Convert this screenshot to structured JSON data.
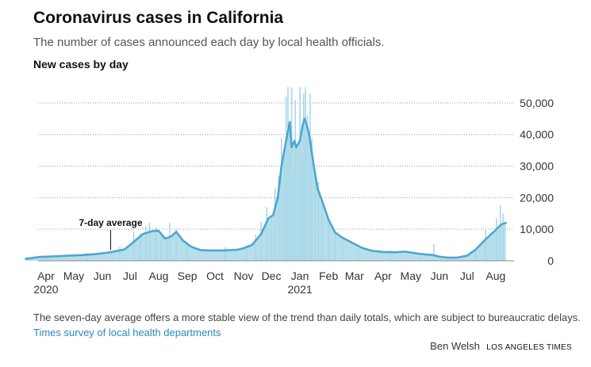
{
  "header": {
    "title": "Coronavirus cases in California",
    "subtitle": "The number of cases announced each day by local health officials.",
    "section_label": "New cases by day"
  },
  "chart_data": {
    "type": "bar",
    "ylim": [
      0,
      55000
    ],
    "grid": true,
    "y_ticks": [
      {
        "value": 0,
        "label": "0"
      },
      {
        "value": 10000,
        "label": "10,000"
      },
      {
        "value": 20000,
        "label": "20,000"
      },
      {
        "value": 30000,
        "label": "30,000"
      },
      {
        "value": 40000,
        "label": "40,000"
      },
      {
        "value": 50000,
        "label": "50,000"
      }
    ],
    "x_ticks": [
      {
        "date": "2020-04-01",
        "label": "Apr",
        "sublabel": "2020"
      },
      {
        "date": "2020-05-01",
        "label": "May"
      },
      {
        "date": "2020-06-01",
        "label": "Jun"
      },
      {
        "date": "2020-07-01",
        "label": "Jul"
      },
      {
        "date": "2020-08-01",
        "label": "Aug"
      },
      {
        "date": "2020-09-01",
        "label": "Sep"
      },
      {
        "date": "2020-10-01",
        "label": "Oct"
      },
      {
        "date": "2020-11-01",
        "label": "Nov"
      },
      {
        "date": "2020-12-01",
        "label": "Dec"
      },
      {
        "date": "2021-01-01",
        "label": "Jan",
        "sublabel": "2021"
      },
      {
        "date": "2021-02-01",
        "label": "Feb"
      },
      {
        "date": "2021-03-01",
        "label": "Mar"
      },
      {
        "date": "2021-04-01",
        "label": "Apr"
      },
      {
        "date": "2021-05-01",
        "label": "May"
      },
      {
        "date": "2021-06-01",
        "label": "Jun"
      },
      {
        "date": "2021-07-01",
        "label": "Jul"
      },
      {
        "date": "2021-08-01",
        "label": "Aug"
      }
    ],
    "x_range": [
      "2020-03-10",
      "2021-08-12"
    ],
    "series": [
      {
        "name": "7-day average",
        "type": "line",
        "color": "#4ea6d1",
        "points": [
          [
            "2020-03-10",
            600
          ],
          [
            "2020-03-25",
            1200
          ],
          [
            "2020-04-10",
            1400
          ],
          [
            "2020-04-25",
            1600
          ],
          [
            "2020-05-10",
            1800
          ],
          [
            "2020-05-25",
            2100
          ],
          [
            "2020-06-10",
            2700
          ],
          [
            "2020-06-25",
            3600
          ],
          [
            "2020-07-05",
            6000
          ],
          [
            "2020-07-15",
            8500
          ],
          [
            "2020-07-25",
            9400
          ],
          [
            "2020-08-01",
            9500
          ],
          [
            "2020-08-08",
            7000
          ],
          [
            "2020-08-15",
            7800
          ],
          [
            "2020-08-20",
            9200
          ],
          [
            "2020-08-27",
            6500
          ],
          [
            "2020-09-05",
            4500
          ],
          [
            "2020-09-15",
            3400
          ],
          [
            "2020-09-25",
            3300
          ],
          [
            "2020-10-10",
            3300
          ],
          [
            "2020-10-25",
            3500
          ],
          [
            "2020-11-01",
            4000
          ],
          [
            "2020-11-10",
            5000
          ],
          [
            "2020-11-20",
            8500
          ],
          [
            "2020-11-28",
            13500
          ],
          [
            "2020-12-03",
            14500
          ],
          [
            "2020-12-08",
            20000
          ],
          [
            "2020-12-12",
            30000
          ],
          [
            "2020-12-17",
            38000
          ],
          [
            "2020-12-21",
            44000
          ],
          [
            "2020-12-23",
            36000
          ],
          [
            "2020-12-26",
            38000
          ],
          [
            "2020-12-28",
            36000
          ],
          [
            "2021-01-01",
            38000
          ],
          [
            "2021-01-04",
            43000
          ],
          [
            "2021-01-06",
            45000
          ],
          [
            "2021-01-08",
            43500
          ],
          [
            "2021-01-11",
            40000
          ],
          [
            "2021-01-15",
            32000
          ],
          [
            "2021-01-20",
            23000
          ],
          [
            "2021-01-25",
            19000
          ],
          [
            "2021-02-01",
            13000
          ],
          [
            "2021-02-08",
            9000
          ],
          [
            "2021-02-15",
            7500
          ],
          [
            "2021-02-28",
            5500
          ],
          [
            "2021-03-10",
            4000
          ],
          [
            "2021-03-20",
            3200
          ],
          [
            "2021-04-01",
            2800
          ],
          [
            "2021-04-15",
            2700
          ],
          [
            "2021-04-25",
            2900
          ],
          [
            "2021-05-10",
            2200
          ],
          [
            "2021-05-25",
            1800
          ],
          [
            "2021-06-01",
            1300
          ],
          [
            "2021-06-10",
            1000
          ],
          [
            "2021-06-20",
            1000
          ],
          [
            "2021-07-01",
            1600
          ],
          [
            "2021-07-10",
            3500
          ],
          [
            "2021-07-20",
            6500
          ],
          [
            "2021-07-31",
            9500
          ],
          [
            "2021-08-07",
            11500
          ],
          [
            "2021-08-12",
            12000
          ]
        ]
      },
      {
        "name": "New cases",
        "type": "bar",
        "color": "#a9d8e8",
        "points": [
          [
            "2020-05-15",
            2500
          ],
          [
            "2020-06-20",
            4500
          ],
          [
            "2020-07-05",
            9500
          ],
          [
            "2020-07-12",
            8600
          ],
          [
            "2020-07-18",
            11000
          ],
          [
            "2020-07-22",
            12000
          ],
          [
            "2020-07-29",
            10600
          ],
          [
            "2020-08-04",
            7400
          ],
          [
            "2020-08-10",
            6400
          ],
          [
            "2020-08-13",
            12000
          ],
          [
            "2020-08-20",
            10200
          ],
          [
            "2020-09-01",
            5600
          ],
          [
            "2020-10-12",
            4300
          ],
          [
            "2020-11-04",
            4800
          ],
          [
            "2020-11-14",
            8400
          ],
          [
            "2020-11-20",
            12400
          ],
          [
            "2020-11-26",
            17000
          ],
          [
            "2020-12-01",
            13800
          ],
          [
            "2020-12-05",
            23000
          ],
          [
            "2020-12-09",
            27000
          ],
          [
            "2020-12-12",
            39000
          ],
          [
            "2020-12-15",
            34000
          ],
          [
            "2020-12-17",
            52000
          ],
          [
            "2020-12-19",
            55000
          ],
          [
            "2020-12-21",
            42000
          ],
          [
            "2020-12-23",
            55000
          ],
          [
            "2020-12-25",
            28000
          ],
          [
            "2020-12-27",
            51000
          ],
          [
            "2020-12-29",
            37000
          ],
          [
            "2021-01-01",
            55000
          ],
          [
            "2021-01-03",
            34000
          ],
          [
            "2021-01-05",
            53000
          ],
          [
            "2021-01-07",
            55000
          ],
          [
            "2021-01-09",
            46000
          ],
          [
            "2021-01-12",
            53000
          ],
          [
            "2021-01-14",
            39000
          ],
          [
            "2021-01-17",
            28000
          ],
          [
            "2021-01-21",
            25000
          ],
          [
            "2021-01-25",
            18000
          ],
          [
            "2021-02-01",
            13000
          ],
          [
            "2021-02-08",
            9000
          ],
          [
            "2021-02-16",
            6800
          ],
          [
            "2021-03-05",
            3800
          ],
          [
            "2021-04-08",
            3300
          ],
          [
            "2021-05-10",
            2300
          ],
          [
            "2021-05-26",
            5300
          ],
          [
            "2021-06-10",
            1400
          ],
          [
            "2021-07-10",
            3800
          ],
          [
            "2021-07-21",
            9700
          ],
          [
            "2021-08-02",
            13500
          ],
          [
            "2021-08-06",
            17500
          ],
          [
            "2021-08-09",
            15000
          ]
        ]
      }
    ],
    "annotation": {
      "text": "7-day average",
      "date": "2020-06-10",
      "value": 2700
    }
  },
  "footer": {
    "note": "The seven-day average offers a more stable view of the trend than daily totals, which are subject to bureaucratic delays.",
    "source": "Times survey of local health departments",
    "author": "Ben Welsh",
    "brand": "LOS ANGELES TIMES"
  },
  "colors": {
    "bar": "#a9d8e8",
    "line": "#4ea6d1",
    "source_link": "#2a8ab8",
    "grid": "#999999"
  }
}
